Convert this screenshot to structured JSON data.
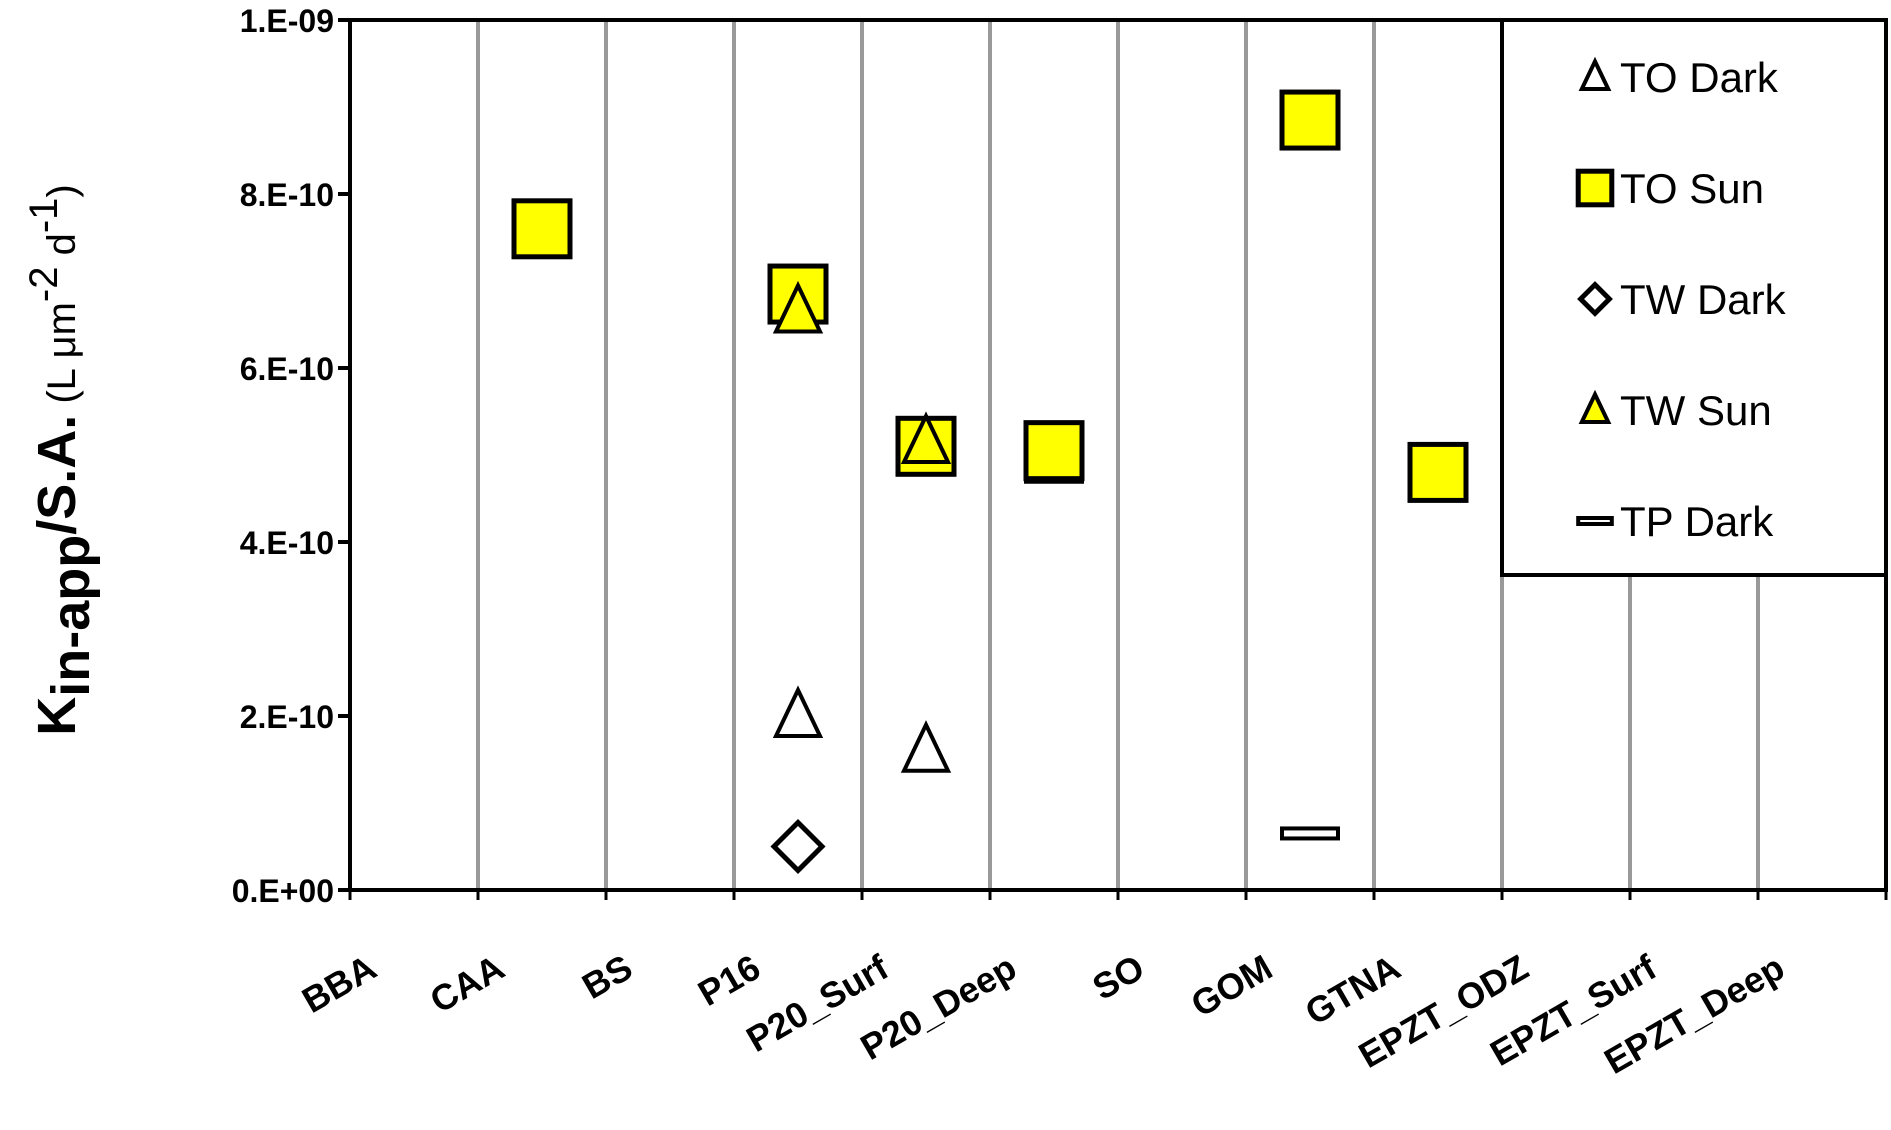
{
  "chart_data": {
    "type": "scatter",
    "categories": [
      "BBA",
      "CAA",
      "BS",
      "P16",
      "P20_Surf",
      "P20_Deep",
      "SO",
      "GOM",
      "GTNA",
      "EPZT_ODZ",
      "EPZT_Surf",
      "EPZT_Deep"
    ],
    "ylim": [
      0,
      1e-09
    ],
    "yticks": [
      "0.E+00",
      "2.E-10",
      "4.E-10",
      "6.E-10",
      "8.E-10",
      "1.E-09"
    ],
    "ytick_values": [
      0,
      2e-10,
      4e-10,
      6e-10,
      8e-10,
      1e-09
    ],
    "ylabel": {
      "main": "K",
      "subscript": "in-app",
      "suffix": "/S.A.",
      "unit_open": "(L μm",
      "unit_sup1": "-2",
      "unit_mid": " d",
      "unit_sup2": "-1",
      "unit_close": ")"
    },
    "grid": "vertical",
    "legend_position": "top-right",
    "series": [
      {
        "name": "TO Dark",
        "marker": "triangle-open",
        "points": [
          {
            "x": "P16",
            "y": 2e-10
          },
          {
            "x": "P20_Surf",
            "y": 1.6e-10
          }
        ]
      },
      {
        "name": "TO Sun",
        "marker": "square-yellow",
        "points": [
          {
            "x": "CAA",
            "y": 7.6e-10
          },
          {
            "x": "P16",
            "y": 6.85e-10
          },
          {
            "x": "P20_Surf",
            "y": 5.1e-10
          },
          {
            "x": "P20_Deep",
            "y": 5.05e-10
          },
          {
            "x": "GOM",
            "y": 8.85e-10
          },
          {
            "x": "GTNA",
            "y": 4.8e-10
          }
        ]
      },
      {
        "name": "TW Dark",
        "marker": "diamond-open",
        "points": [
          {
            "x": "P16",
            "y": 5e-11
          }
        ]
      },
      {
        "name": "TW Sun",
        "marker": "triangle-yellow",
        "points": [
          {
            "x": "P16",
            "y": 6.65e-10
          },
          {
            "x": "P20_Surf",
            "y": 5.15e-10
          }
        ]
      },
      {
        "name": "TP Dark",
        "marker": "dash-open",
        "points": [
          {
            "x": "P20_Surf",
            "y": 4.9e-10
          },
          {
            "x": "P20_Deep",
            "y": 4.75e-10
          },
          {
            "x": "GOM",
            "y": 6.5e-11
          }
        ]
      }
    ],
    "colors": {
      "fill_sun": "#ffff00",
      "grid": "#999999",
      "axis": "#000000"
    }
  }
}
